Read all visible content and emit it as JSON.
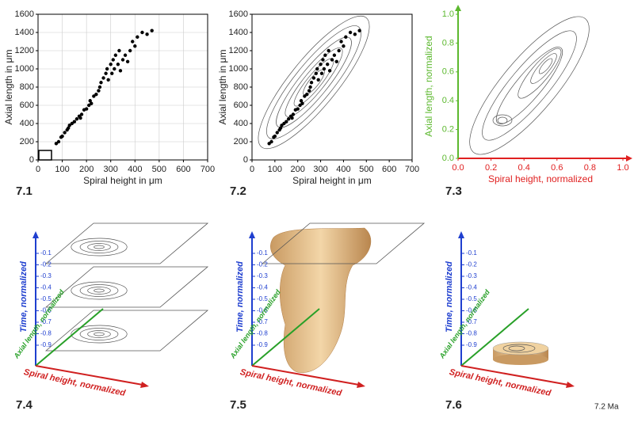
{
  "chart_data": [
    {
      "type": "scatter",
      "xlabel": "Spiral height in μm",
      "ylabel": "Axial length in μm",
      "color": "#000000",
      "grid": true,
      "xlim": [
        0,
        700
      ],
      "ylim": [
        0,
        1600
      ],
      "xticks": [
        0,
        100,
        200,
        300,
        400,
        500,
        600,
        700
      ],
      "yticks": [
        0,
        200,
        400,
        600,
        800,
        1000,
        1200,
        1400,
        1600
      ],
      "x": [
        75,
        85,
        95,
        100,
        110,
        120,
        125,
        130,
        140,
        150,
        160,
        170,
        175,
        180,
        190,
        200,
        210,
        215,
        220,
        230,
        240,
        250,
        255,
        260,
        270,
        280,
        285,
        290,
        300,
        305,
        310,
        315,
        320,
        330,
        335,
        340,
        350,
        360,
        370,
        380,
        390,
        400,
        410,
        430,
        450,
        470
      ],
      "values": [
        180,
        200,
        250,
        260,
        300,
        330,
        350,
        380,
        400,
        420,
        450,
        480,
        460,
        500,
        550,
        560,
        600,
        650,
        620,
        700,
        720,
        760,
        800,
        850,
        900,
        950,
        1000,
        880,
        1050,
        950,
        1100,
        1000,
        1150,
        1050,
        1200,
        980,
        1100,
        1150,
        1080,
        1200,
        1300,
        1250,
        1350,
        1400,
        1380,
        1420
      ]
    },
    {
      "type": "scatter",
      "xlabel": "Spiral height in μm",
      "ylabel": "Axial length in μm",
      "color": "#000000",
      "grid": false,
      "xlim": [
        0,
        700
      ],
      "ylim": [
        0,
        1600
      ],
      "xticks": [
        0,
        100,
        200,
        300,
        400,
        500,
        600,
        700
      ],
      "yticks": [
        0,
        200,
        400,
        600,
        800,
        1000,
        1200,
        1400,
        1600
      ],
      "x": [
        75,
        85,
        95,
        100,
        110,
        120,
        125,
        130,
        140,
        150,
        160,
        170,
        175,
        180,
        190,
        200,
        210,
        215,
        220,
        230,
        240,
        250,
        255,
        260,
        270,
        280,
        285,
        290,
        300,
        305,
        310,
        315,
        320,
        330,
        335,
        340,
        350,
        360,
        370,
        380,
        390,
        400,
        410,
        430,
        450,
        470
      ],
      "values": [
        180,
        200,
        250,
        260,
        300,
        330,
        350,
        380,
        400,
        420,
        450,
        480,
        460,
        500,
        550,
        560,
        600,
        650,
        620,
        700,
        720,
        760,
        800,
        850,
        900,
        950,
        1000,
        880,
        1050,
        950,
        1100,
        1000,
        1150,
        1050,
        1200,
        980,
        1100,
        1150,
        1080,
        1200,
        1300,
        1250,
        1350,
        1400,
        1380,
        1420
      ]
    },
    {
      "type": "contour",
      "xlabel": "Spiral height, normalized",
      "ylabel": "Axial length, normalized",
      "x_axis_color": "#e02020",
      "y_axis_color": "#5cb82e",
      "grid": false,
      "xlim": [
        0,
        1
      ],
      "ylim": [
        0,
        1
      ],
      "xticks": [
        {
          "value": 0,
          "label": "0.0"
        },
        0.2,
        0.4,
        0.6,
        0.8,
        {
          "value": 1,
          "label": "1.0"
        }
      ],
      "yticks": [
        {
          "value": 0,
          "label": "0.0"
        },
        0.2,
        0.4,
        0.6,
        0.8,
        {
          "value": 1,
          "label": "1.0"
        }
      ]
    }
  ],
  "panel_labels": [
    "7.1",
    "7.2",
    "7.3",
    "7.4",
    "7.5",
    "7.6"
  ],
  "axes_3d": {
    "time": "Time, normalized",
    "axial": "Axial length, normalized",
    "spiral": "Spiral height, normalized",
    "time_ticks": [
      -0.1,
      -0.2,
      -0.3,
      -0.4,
      -0.5,
      -0.6,
      -0.7,
      -0.8,
      -0.9
    ]
  },
  "note": "7.2 Ma"
}
